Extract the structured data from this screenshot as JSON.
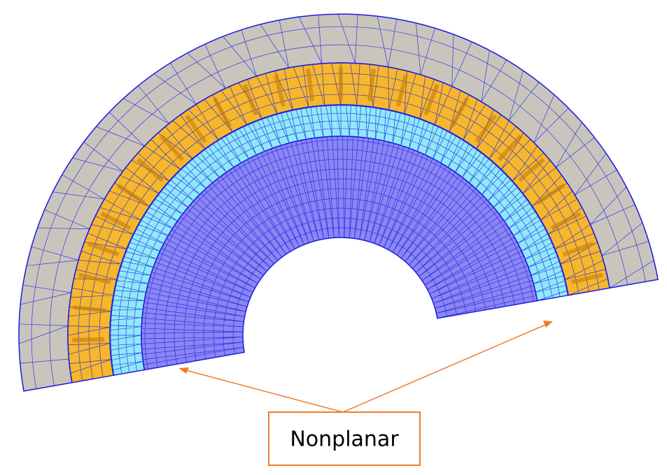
{
  "annotation": {
    "label": "Nonplanar"
  }
}
